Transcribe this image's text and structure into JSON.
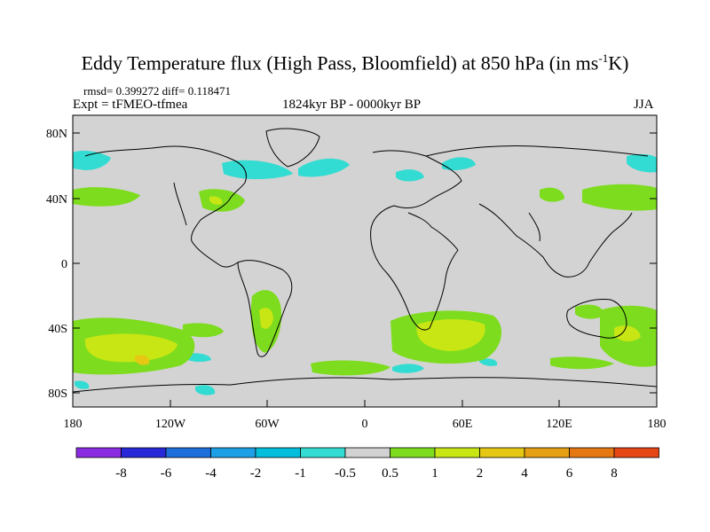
{
  "title": {
    "main": "Eddy Temperature flux (High Pass, Bloomfield) at 850 hPa (in ms",
    "sup": "-1",
    "end": "K)"
  },
  "stats": "rmsd= 0.399272 diff= 0.118471",
  "experiment": "Expt = tFMEO-tfmea",
  "period": "1824kyr BP - 0000kyr BP",
  "season": "JJA",
  "lat_labels": [
    "80N",
    "40N",
    "0",
    "40S",
    "80S"
  ],
  "lon_labels": [
    "180",
    "120W",
    "60W",
    "0",
    "60E",
    "120E",
    "180"
  ],
  "colorbar": {
    "colors": [
      "#8a2be2",
      "#2828d8",
      "#1e6edc",
      "#1ea0e6",
      "#00bedc",
      "#32dcd2",
      "#d2d2d2",
      "#7ddc1e",
      "#c8e614",
      "#e6c814",
      "#e6a014",
      "#e67814",
      "#e64614"
    ],
    "labels": [
      "-8",
      "-6",
      "-4",
      "-2",
      "-1",
      "-0.5",
      "0.5",
      "1",
      "2",
      "4",
      "6",
      "8"
    ]
  },
  "map_colors": {
    "ocean": "#d3d3d3",
    "coast": "#000000"
  }
}
